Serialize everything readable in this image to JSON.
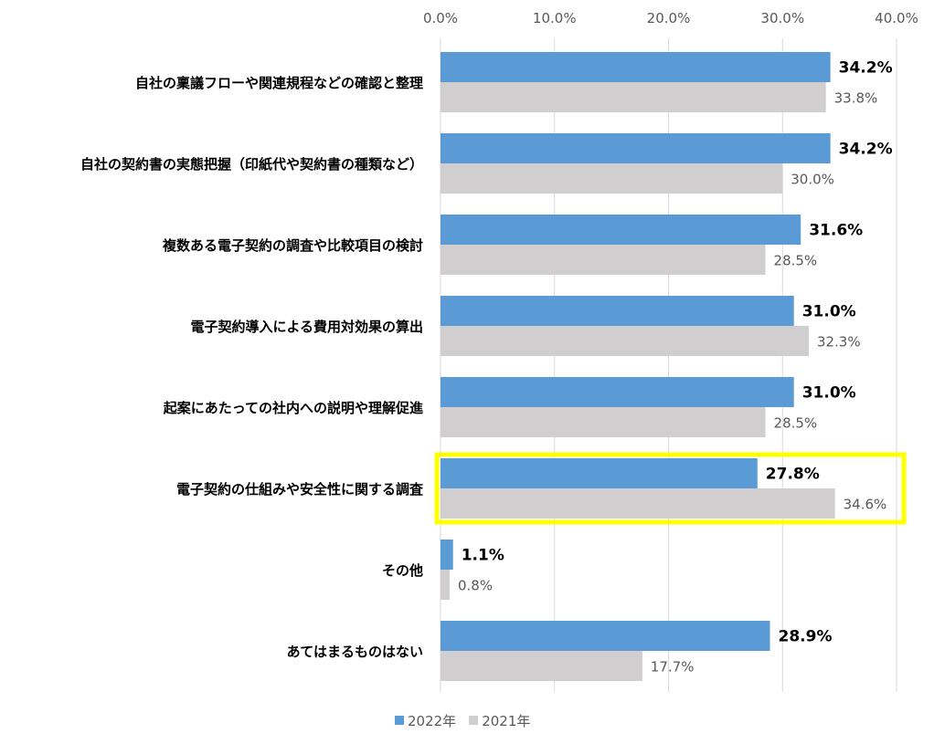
{
  "chart_data": {
    "type": "bar",
    "orientation": "horizontal",
    "categories": [
      "自社の稟議フローや関連規程などの確認と整理",
      "自社の契約書の実態把握（印紙代や契約書の種類など）",
      "複数ある電子契約の調査や比較項目の検討",
      "電子契約導入による費用対効果の算出",
      "起案にあたっての社内への説明や理解促進",
      "電子契約の仕組みや安全性に関する調査",
      "その他",
      "あてはまるものはない"
    ],
    "series": [
      {
        "name": "2022年",
        "color": "#5b9bd5",
        "values": [
          34.2,
          34.2,
          31.6,
          31.0,
          31.0,
          27.8,
          1.1,
          28.9
        ],
        "labels": [
          "34.2%",
          "34.2%",
          "31.6%",
          "31.0%",
          "31.0%",
          "27.8%",
          "1.1%",
          "28.9%"
        ]
      },
      {
        "name": "2021年",
        "color": "#d0cece",
        "values": [
          33.8,
          30.0,
          28.5,
          32.3,
          28.5,
          34.6,
          0.8,
          17.7
        ],
        "labels": [
          "33.8%",
          "30.0%",
          "28.5%",
          "32.3%",
          "28.5%",
          "34.6%",
          "0.8%",
          "17.7%"
        ]
      }
    ],
    "xlim": [
      0,
      40
    ],
    "ticks": [
      0,
      10,
      20,
      30,
      40
    ],
    "tick_labels": [
      "0.0%",
      "10.0%",
      "20.0%",
      "30.0%",
      "40.0%"
    ],
    "axis_position": "top",
    "grid": true,
    "legend_position": "bottom",
    "highlight": {
      "category_index": 5,
      "color": "#ffff00"
    }
  }
}
